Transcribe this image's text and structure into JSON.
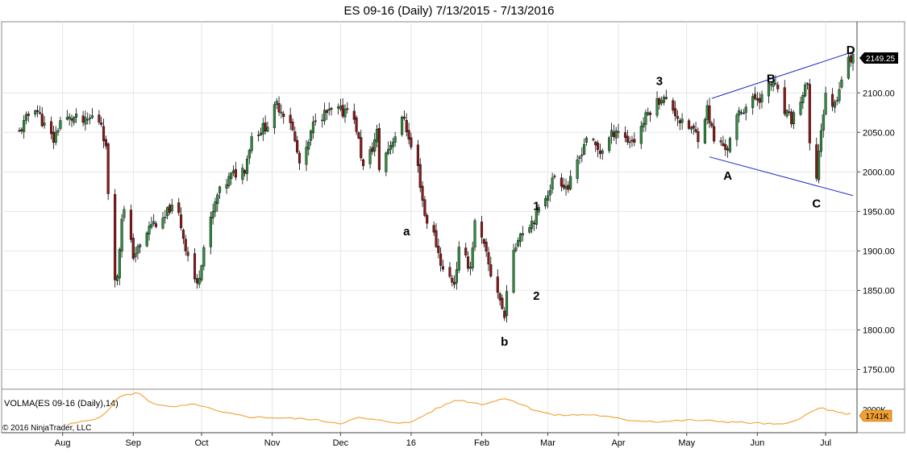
{
  "chart_data": {
    "type": "candlestick",
    "title": "ES 09-16 (Daily)  7/13/2015 - 7/13/2016",
    "price_axis": {
      "ylim": [
        1725,
        2190
      ],
      "ticks": [
        1750,
        1800,
        1850,
        1900,
        1950,
        2000,
        2050,
        2100
      ],
      "tick_labels": [
        "1750.00",
        "1800.00",
        "1850.00",
        "1900.00",
        "1950.00",
        "2000.00",
        "2050.00",
        "2100.00"
      ]
    },
    "last_price": {
      "value": 2149.25,
      "label": "2149.25",
      "color": "#000000"
    },
    "x_axis": {
      "start_date": "2015-07-13",
      "end_date": "2016-07-13",
      "month_labels": [
        {
          "label": "Aug",
          "date": "2015-08-01"
        },
        {
          "label": "Sep",
          "date": "2015-09-01"
        },
        {
          "label": "Oct",
          "date": "2015-10-01"
        },
        {
          "label": "Nov",
          "date": "2015-11-01"
        },
        {
          "label": "Dec",
          "date": "2015-12-01"
        },
        {
          "label": "16",
          "date": "2016-01-01"
        },
        {
          "label": "Feb",
          "date": "2016-02-01"
        },
        {
          "label": "Mar",
          "date": "2016-03-01"
        },
        {
          "label": "Apr",
          "date": "2016-04-01"
        },
        {
          "label": "May",
          "date": "2016-05-01"
        },
        {
          "label": "Jun",
          "date": "2016-06-01"
        },
        {
          "label": "Jul",
          "date": "2016-07-01"
        }
      ]
    },
    "price_path": [
      [
        "2015-07-13",
        2050
      ],
      [
        "2015-07-17",
        2072
      ],
      [
        "2015-07-20",
        2083
      ],
      [
        "2015-07-24",
        2058
      ],
      [
        "2015-07-28",
        2040
      ],
      [
        "2015-07-31",
        2065
      ],
      [
        "2015-08-06",
        2068
      ],
      [
        "2015-08-11",
        2062
      ],
      [
        "2015-08-14",
        2070
      ],
      [
        "2015-08-18",
        2063
      ],
      [
        "2015-08-20",
        2028
      ],
      [
        "2015-08-21",
        1975
      ],
      [
        "2015-08-24",
        1870
      ],
      [
        "2015-08-25",
        1865
      ],
      [
        "2015-08-27",
        1945
      ],
      [
        "2015-08-28",
        1950
      ],
      [
        "2015-09-01",
        1895
      ],
      [
        "2015-09-04",
        1905
      ],
      [
        "2015-09-09",
        1935
      ],
      [
        "2015-09-14",
        1935
      ],
      [
        "2015-09-17",
        1955
      ],
      [
        "2015-09-21",
        1945
      ],
      [
        "2015-09-24",
        1905
      ],
      [
        "2015-09-28",
        1865
      ],
      [
        "2015-09-29",
        1855
      ],
      [
        "2015-10-02",
        1905
      ],
      [
        "2015-10-08",
        1970
      ],
      [
        "2015-10-14",
        1995
      ],
      [
        "2015-10-20",
        2005
      ],
      [
        "2015-10-23",
        2045
      ],
      [
        "2015-10-30",
        2060
      ],
      [
        "2015-11-03",
        2085
      ],
      [
        "2015-11-09",
        2065
      ],
      [
        "2015-11-13",
        2010
      ],
      [
        "2015-11-16",
        2025
      ],
      [
        "2015-11-20",
        2070
      ],
      [
        "2015-11-30",
        2078
      ],
      [
        "2015-12-02",
        2075
      ],
      [
        "2015-12-04",
        2085
      ],
      [
        "2015-12-08",
        2055
      ],
      [
        "2015-12-11",
        2005
      ],
      [
        "2015-12-15",
        2030
      ],
      [
        "2015-12-17",
        2050
      ],
      [
        "2015-12-18",
        2005
      ],
      [
        "2015-12-22",
        2030
      ],
      [
        "2015-12-29",
        2070
      ],
      [
        "2015-12-31",
        2040
      ],
      [
        "2016-01-04",
        2005
      ],
      [
        "2016-01-07",
        1945
      ],
      [
        "2016-01-11",
        1920
      ],
      [
        "2016-01-15",
        1875
      ],
      [
        "2016-01-20",
        1860
      ],
      [
        "2016-01-22",
        1900
      ],
      [
        "2016-01-27",
        1880
      ],
      [
        "2016-01-29",
        1935
      ],
      [
        "2016-02-02",
        1905
      ],
      [
        "2016-02-05",
        1870
      ],
      [
        "2016-02-08",
        1850
      ],
      [
        "2016-02-11",
        1815
      ],
      [
        "2016-02-12",
        1855
      ],
      [
        "2016-02-17",
        1920
      ],
      [
        "2016-02-22",
        1935
      ],
      [
        "2016-02-25",
        1945
      ],
      [
        "2016-03-01",
        1975
      ],
      [
        "2016-03-04",
        1995
      ],
      [
        "2016-03-10",
        1980
      ],
      [
        "2016-03-14",
        2010
      ],
      [
        "2016-03-18",
        2045
      ],
      [
        "2016-03-24",
        2025
      ],
      [
        "2016-03-31",
        2055
      ],
      [
        "2016-04-05",
        2040
      ],
      [
        "2016-04-08",
        2040
      ],
      [
        "2016-04-14",
        2075
      ],
      [
        "2016-04-20",
        2095
      ],
      [
        "2016-04-25",
        2080
      ],
      [
        "2016-04-29",
        2060
      ],
      [
        "2016-05-03",
        2055
      ],
      [
        "2016-05-06",
        2045
      ],
      [
        "2016-05-10",
        2080
      ],
      [
        "2016-05-13",
        2040
      ],
      [
        "2016-05-19",
        2030
      ],
      [
        "2016-05-24",
        2075
      ],
      [
        "2016-05-31",
        2093
      ],
      [
        "2016-06-03",
        2095
      ],
      [
        "2016-06-08",
        2115
      ],
      [
        "2016-06-13",
        2075
      ],
      [
        "2016-06-16",
        2065
      ],
      [
        "2016-06-23",
        2110
      ],
      [
        "2016-06-24",
        2030
      ],
      [
        "2016-06-27",
        1995
      ],
      [
        "2016-06-29",
        2055
      ],
      [
        "2016-07-01",
        2095
      ],
      [
        "2016-07-05",
        2085
      ],
      [
        "2016-07-08",
        2120
      ],
      [
        "2016-07-11",
        2140
      ],
      [
        "2016-07-13",
        2149
      ]
    ],
    "wave_labels": [
      {
        "text": "a",
        "date": "2015-12-30",
        "price": 1920
      },
      {
        "text": "b",
        "date": "2016-02-11",
        "price": 1780
      },
      {
        "text": "1",
        "date": "2016-02-25",
        "price": 1952
      },
      {
        "text": "2",
        "date": "2016-02-25",
        "price": 1838
      },
      {
        "text": "3",
        "date": "2016-04-19",
        "price": 2110
      },
      {
        "text": "A",
        "date": "2016-05-19",
        "price": 1990
      },
      {
        "text": "B",
        "date": "2016-06-07",
        "price": 2113
      },
      {
        "text": "C",
        "date": "2016-06-27",
        "price": 1955
      },
      {
        "text": "D",
        "date": "2016-07-12",
        "price": 2149
      }
    ],
    "trend_lines": [
      {
        "from": [
          "2016-05-12",
          2093
        ],
        "to": [
          "2016-07-13",
          2152
        ]
      },
      {
        "from": [
          "2016-05-11",
          2019
        ],
        "to": [
          "2016-07-13",
          1970
        ]
      }
    ]
  },
  "volume_panel": {
    "label": "VOLMA(ES 09-16 (Daily),14)",
    "last_value_label": "1741K",
    "hidden_tick_label": "2000K",
    "line_color": "#f0a030",
    "copyright": "© 2016 NinjaTrader, LLC",
    "volume_path": [
      [
        "2015-08-03",
        1.4
      ],
      [
        "2015-08-13",
        1.55
      ],
      [
        "2015-08-19",
        1.7
      ],
      [
        "2015-08-26",
        2.3
      ],
      [
        "2015-09-03",
        2.42
      ],
      [
        "2015-09-09",
        2.1
      ],
      [
        "2015-09-17",
        1.95
      ],
      [
        "2015-09-29",
        2.05
      ],
      [
        "2015-10-09",
        1.8
      ],
      [
        "2015-10-22",
        1.65
      ],
      [
        "2015-11-04",
        1.62
      ],
      [
        "2015-11-17",
        1.58
      ],
      [
        "2015-12-01",
        1.45
      ],
      [
        "2015-12-09",
        1.62
      ],
      [
        "2015-12-22",
        1.5
      ],
      [
        "2015-12-31",
        1.45
      ],
      [
        "2016-01-12",
        1.9
      ],
      [
        "2016-01-21",
        2.2
      ],
      [
        "2016-02-01",
        2.05
      ],
      [
        "2016-02-12",
        2.25
      ],
      [
        "2016-02-23",
        1.9
      ],
      [
        "2016-03-04",
        1.7
      ],
      [
        "2016-03-21",
        1.72
      ],
      [
        "2016-04-05",
        1.55
      ],
      [
        "2016-04-19",
        1.5
      ],
      [
        "2016-05-03",
        1.55
      ],
      [
        "2016-05-18",
        1.5
      ],
      [
        "2016-06-01",
        1.45
      ],
      [
        "2016-06-13",
        1.4
      ],
      [
        "2016-06-22",
        1.7
      ],
      [
        "2016-06-29",
        1.95
      ],
      [
        "2016-07-06",
        1.78
      ],
      [
        "2016-07-13",
        1.74
      ]
    ]
  }
}
